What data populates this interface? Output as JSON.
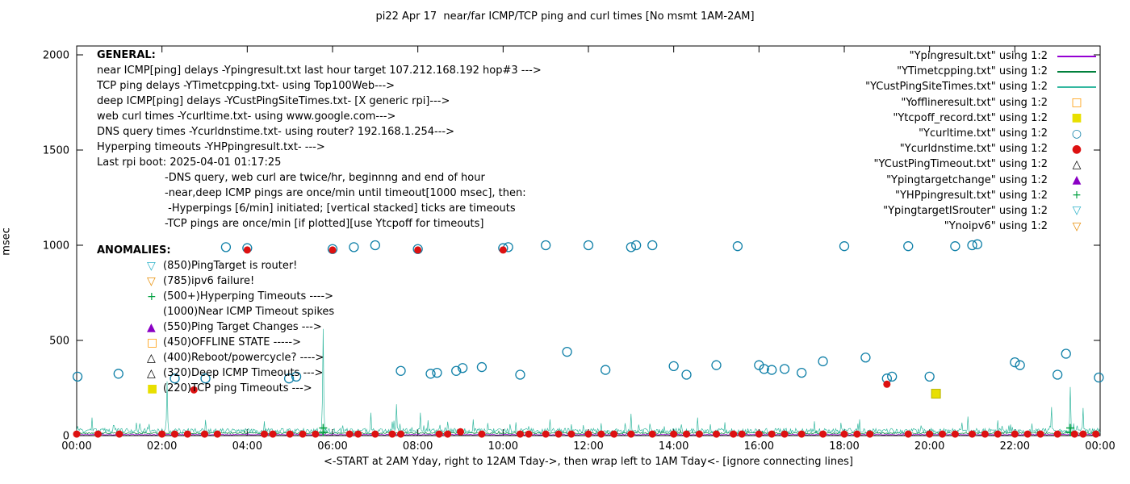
{
  "title": "pi22 Apr 17  near/far ICMP/TCP ping and curl times [No msmt 1AM-2AM]",
  "legend": {
    "items": [
      {
        "label": "\"Ypingresult.txt\" using 1:2",
        "marker": "line",
        "color": "#9400d3"
      },
      {
        "label": "\"YTimetcpping.txt\" using 1:2",
        "marker": "line",
        "color": "#00803c"
      },
      {
        "label": "\"YCustPingSiteTimes.txt\" using 1:2",
        "marker": "line",
        "color": "#35b8a0"
      },
      {
        "label": "\"Yofflineresult.txt\" using 1:2",
        "marker": "open-square",
        "color": "#ff9900"
      },
      {
        "label": "\"Ytcpoff_record.txt\" using 1:2",
        "marker": "filled-square",
        "color": "#e8df00"
      },
      {
        "label": "\"Ycurltime.txt\" using 1:2",
        "marker": "open-circle",
        "color": "#1080a8"
      },
      {
        "label": "\"Ycurldnstime.txt\" using 1:2",
        "marker": "filled-circle",
        "color": "#dd1111"
      },
      {
        "label": "\"YCustPingTimeout.txt\" using 1:2",
        "marker": "open-triangle-up",
        "color": "#000000"
      },
      {
        "label": "\"Ypingtargetchange\" using 1:2",
        "marker": "filled-triangle-up",
        "color": "#8a00c4"
      },
      {
        "label": "\"YHPpingresult.txt\" using 1:2",
        "marker": "plus",
        "color": "#00a040"
      },
      {
        "label": "\"YpingtargetISrouter\" using 1:2",
        "marker": "open-triangle-down",
        "color": "#2fb3c9"
      },
      {
        "label": "\"Ynoipv6\" using 1:2",
        "marker": "open-triangle-down",
        "color": "#e8900a"
      }
    ]
  },
  "general": {
    "heading": "GENERAL:",
    "lines": [
      "near ICMP[ping] delays -Ypingresult.txt last hour target 107.212.168.192 hop#3 --->",
      "TCP ping delays -YTimetcpping.txt- using Top100Web--->",
      "deep ICMP[ping] delays -YCustPingSiteTimes.txt- [X generic rpi]--->",
      "web curl times -Ycurltime.txt- using www.google.com--->",
      "DNS query times -Ycurldnstime.txt- using router? 192.168.1.254--->",
      "Hyperping timeouts -YHPpingresult.txt- --->",
      "Last rpi boot: 2025-04-01 01:17:25"
    ],
    "notes": [
      "-DNS query, web curl are twice/hr, beginnng and end of hour",
      "-near,deep ICMP pings are once/min until timeout[1000 msec], then:",
      " -Hyperpings [6/min] initiated; [vertical stacked] ticks are timeouts",
      "-TCP pings are once/min [if plotted][use Ytcpoff for timeouts]"
    ]
  },
  "anomalies": {
    "heading": "ANOMALIES:",
    "items": [
      {
        "marker": "open-triangle-down",
        "color": "#2fb3c9",
        "label": "(850)PingTarget is router!"
      },
      {
        "marker": "open-triangle-down",
        "color": "#e8900a",
        "label": "(785)ipv6 failure!"
      },
      {
        "marker": "plus",
        "color": "#00a040",
        "label": "(500+)Hyperping Timeouts ---->"
      },
      {
        "marker": "none",
        "color": "#000000",
        "label": "(1000)Near ICMP Timeout spikes"
      },
      {
        "marker": "filled-triangle-up",
        "color": "#8a00c4",
        "label": "(550)Ping Target Changes --->"
      },
      {
        "marker": "open-square",
        "color": "#ff9900",
        "label": "(450)OFFLINE STATE ----->"
      },
      {
        "marker": "open-triangle-up",
        "color": "#000000",
        "label": "(400)Reboot/powercycle? ---->"
      },
      {
        "marker": "open-triangle-up",
        "color": "#000000",
        "label": "(320)Deep ICMP Timeouts --->"
      },
      {
        "marker": "filled-square",
        "color": "#e8df00",
        "label": "(220)TCP ping Timeouts --->"
      }
    ]
  },
  "chart_data": {
    "type": "scatter",
    "title": "pi22 Apr 17  near/far ICMP/TCP ping and curl times [No msmt 1AM-2AM]",
    "grid": false,
    "legend_position": "top-right",
    "x_axis": {
      "label": "<-START at 2AM Yday, right to 12AM Tday->, then wrap left to 1AM Tday<- [ignore connecting lines]",
      "ticks": [
        "00:00",
        "02:00",
        "04:00",
        "06:00",
        "08:00",
        "10:00",
        "12:00",
        "14:00",
        "16:00",
        "18:00",
        "20:00",
        "22:00",
        "00:00"
      ],
      "hours": [
        0,
        2,
        4,
        6,
        8,
        10,
        12,
        14,
        16,
        18,
        20,
        22,
        24
      ],
      "range_hours": [
        0,
        24
      ]
    },
    "y_axis": {
      "label": "msec",
      "ticks": [
        0,
        500,
        1000,
        1500,
        2000
      ],
      "range": [
        0,
        2000
      ]
    },
    "series": [
      {
        "name": "Ypingresult.txt",
        "type": "noise-line",
        "color": "#9400d3",
        "base": 3,
        "amp": 4,
        "seed": 11,
        "spikes": []
      },
      {
        "name": "YTimetcpping.txt",
        "type": "noise-line",
        "color": "#00803c",
        "base": 9,
        "amp": 7,
        "seed": 22,
        "spikes": []
      },
      {
        "name": "YCustPingSiteTimes.txt",
        "type": "noise-line",
        "color": "#35b8a0",
        "base": 12,
        "amp": 26,
        "seed": 33,
        "spikes": [
          [
            0.35,
            95
          ],
          [
            2.12,
            285
          ],
          [
            4.4,
            75
          ],
          [
            5.78,
            560
          ],
          [
            6.9,
            120
          ],
          [
            7.5,
            165
          ],
          [
            8.05,
            120
          ],
          [
            9.3,
            85
          ],
          [
            10.3,
            70
          ],
          [
            11.1,
            85
          ],
          [
            12.3,
            65
          ],
          [
            13.0,
            115
          ],
          [
            14.55,
            95
          ],
          [
            15.2,
            70
          ],
          [
            17.3,
            75
          ],
          [
            18.35,
            85
          ],
          [
            20.9,
            100
          ],
          [
            21.6,
            80
          ],
          [
            22.85,
            150
          ],
          [
            23.3,
            255
          ],
          [
            23.6,
            145
          ]
        ]
      },
      {
        "name": "YHPpingresult.txt",
        "type": "scatter",
        "marker": "plus",
        "color": "#00a040",
        "points": [
          [
            5.78,
            18
          ],
          [
            5.78,
            40
          ],
          [
            23.3,
            18
          ],
          [
            23.3,
            40
          ]
        ]
      },
      {
        "name": "Ycurltime.txt",
        "type": "scatter",
        "marker": "open-circle",
        "color": "#1080a8",
        "points": [
          [
            0.02,
            310
          ],
          [
            0.98,
            325
          ],
          [
            2.3,
            300
          ],
          [
            3.02,
            300
          ],
          [
            3.5,
            990
          ],
          [
            4,
            985
          ],
          [
            4.98,
            300
          ],
          [
            5.15,
            310
          ],
          [
            6,
            980
          ],
          [
            6.5,
            990
          ],
          [
            7,
            1000
          ],
          [
            7.6,
            340
          ],
          [
            8,
            980
          ],
          [
            8.3,
            325
          ],
          [
            8.45,
            330
          ],
          [
            8.9,
            340
          ],
          [
            9.05,
            355
          ],
          [
            9.5,
            360
          ],
          [
            10,
            985
          ],
          [
            10.12,
            990
          ],
          [
            10.4,
            320
          ],
          [
            11,
            1000
          ],
          [
            11.5,
            440
          ],
          [
            12,
            1000
          ],
          [
            12.4,
            345
          ],
          [
            13,
            990
          ],
          [
            13.12,
            1000
          ],
          [
            13.5,
            1000
          ],
          [
            14,
            365
          ],
          [
            14.3,
            320
          ],
          [
            15,
            370
          ],
          [
            15.5,
            995
          ],
          [
            16,
            370
          ],
          [
            16.12,
            350
          ],
          [
            16.3,
            345
          ],
          [
            16.6,
            350
          ],
          [
            17,
            330
          ],
          [
            17.5,
            390
          ],
          [
            18,
            995
          ],
          [
            18.5,
            410
          ],
          [
            19,
            300
          ],
          [
            19.12,
            310
          ],
          [
            19.5,
            995
          ],
          [
            20,
            310
          ],
          [
            20.6,
            995
          ],
          [
            21,
            1000
          ],
          [
            21.12,
            1005
          ],
          [
            22,
            385
          ],
          [
            22.12,
            370
          ],
          [
            23,
            320
          ],
          [
            23.2,
            430
          ],
          [
            23.97,
            305
          ]
        ]
      },
      {
        "name": "Ycurldnstime.txt",
        "type": "scatter",
        "marker": "filled-circle",
        "color": "#dd1111",
        "points": [
          [
            2.75,
            240
          ],
          [
            4,
            975
          ],
          [
            6,
            975
          ],
          [
            8,
            975
          ],
          [
            9,
            20
          ],
          [
            10,
            975
          ],
          [
            19,
            270
          ],
          [
            0,
            8
          ],
          [
            0.5,
            8
          ],
          [
            1,
            8
          ],
          [
            2,
            8
          ],
          [
            2.3,
            8
          ],
          [
            2.6,
            8
          ],
          [
            3,
            8
          ],
          [
            3.3,
            8
          ],
          [
            4.4,
            8
          ],
          [
            4.6,
            8
          ],
          [
            5,
            8
          ],
          [
            5.3,
            8
          ],
          [
            5.6,
            8
          ],
          [
            6.4,
            8
          ],
          [
            6.6,
            8
          ],
          [
            7,
            8
          ],
          [
            7.4,
            8
          ],
          [
            7.6,
            8
          ],
          [
            8.5,
            8
          ],
          [
            8.7,
            8
          ],
          [
            9.5,
            8
          ],
          [
            10.4,
            8
          ],
          [
            10.6,
            8
          ],
          [
            11,
            8
          ],
          [
            11.3,
            8
          ],
          [
            11.6,
            8
          ],
          [
            12,
            8
          ],
          [
            12.3,
            8
          ],
          [
            12.6,
            8
          ],
          [
            13,
            8
          ],
          [
            13.5,
            8
          ],
          [
            14,
            8
          ],
          [
            14.3,
            8
          ],
          [
            14.6,
            8
          ],
          [
            15,
            8
          ],
          [
            15.4,
            8
          ],
          [
            15.6,
            8
          ],
          [
            16,
            8
          ],
          [
            16.3,
            8
          ],
          [
            16.6,
            8
          ],
          [
            17,
            8
          ],
          [
            17.5,
            8
          ],
          [
            18,
            8
          ],
          [
            18.3,
            8
          ],
          [
            18.6,
            8
          ],
          [
            19.5,
            8
          ],
          [
            20,
            8
          ],
          [
            20.3,
            8
          ],
          [
            20.6,
            8
          ],
          [
            21,
            8
          ],
          [
            21.3,
            8
          ],
          [
            21.6,
            8
          ],
          [
            22,
            8
          ],
          [
            22.3,
            8
          ],
          [
            22.6,
            8
          ],
          [
            23,
            8
          ],
          [
            23.4,
            8
          ],
          [
            23.6,
            8
          ],
          [
            23.9,
            8
          ]
        ]
      },
      {
        "name": "Ytcpoff_record.txt",
        "type": "scatter",
        "marker": "filled-square",
        "color": "#e8df00",
        "points": [
          [
            20.15,
            220
          ]
        ]
      }
    ]
  }
}
